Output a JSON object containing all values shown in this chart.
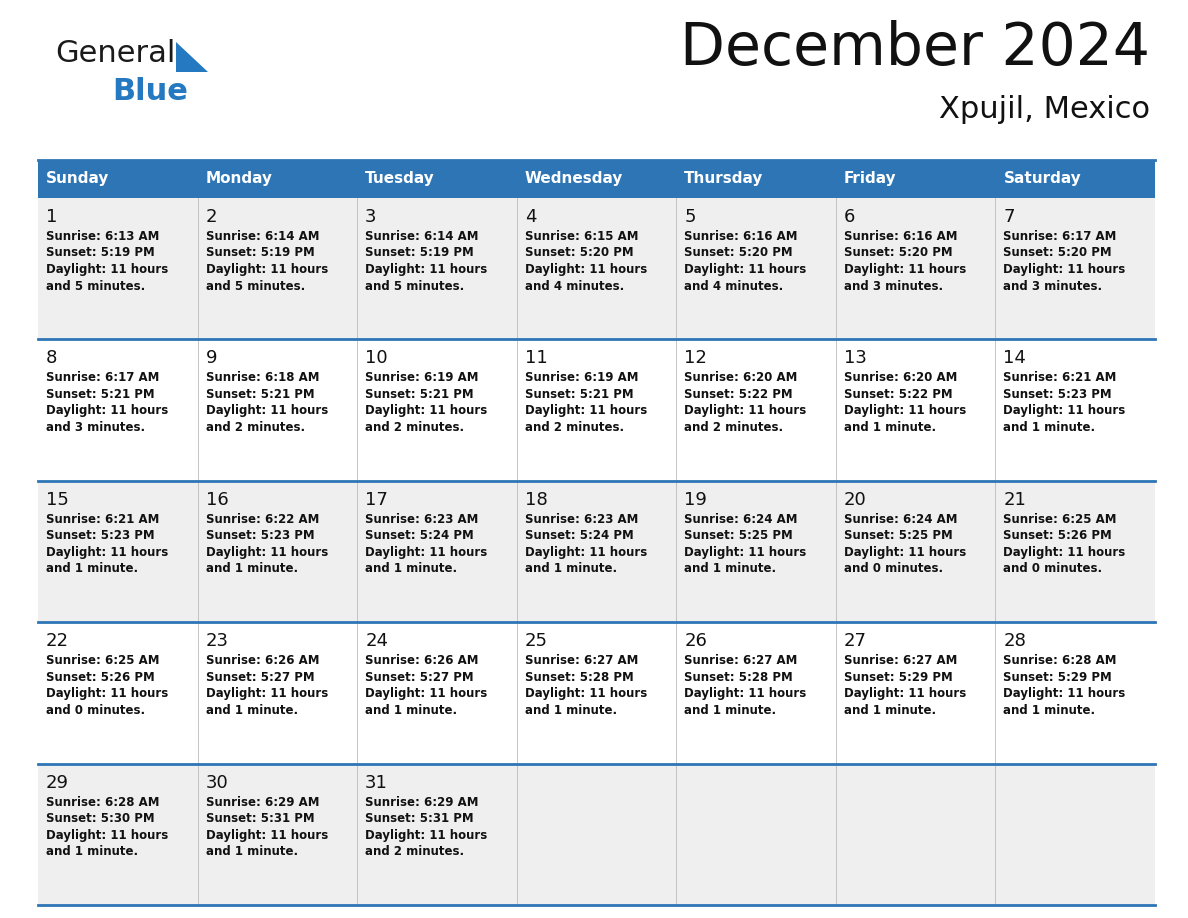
{
  "title": "December 2024",
  "subtitle": "Xpujil, Mexico",
  "header_color": "#2E75B6",
  "header_text_color": "#FFFFFF",
  "day_names": [
    "Sunday",
    "Monday",
    "Tuesday",
    "Wednesday",
    "Thursday",
    "Friday",
    "Saturday"
  ],
  "days": [
    {
      "day": 1,
      "col": 0,
      "row": 0,
      "sunrise": "6:13 AM",
      "sunset": "5:19 PM",
      "daylight": "11 hours and 5 minutes."
    },
    {
      "day": 2,
      "col": 1,
      "row": 0,
      "sunrise": "6:14 AM",
      "sunset": "5:19 PM",
      "daylight": "11 hours and 5 minutes."
    },
    {
      "day": 3,
      "col": 2,
      "row": 0,
      "sunrise": "6:14 AM",
      "sunset": "5:19 PM",
      "daylight": "11 hours and 5 minutes."
    },
    {
      "day": 4,
      "col": 3,
      "row": 0,
      "sunrise": "6:15 AM",
      "sunset": "5:20 PM",
      "daylight": "11 hours and 4 minutes."
    },
    {
      "day": 5,
      "col": 4,
      "row": 0,
      "sunrise": "6:16 AM",
      "sunset": "5:20 PM",
      "daylight": "11 hours and 4 minutes."
    },
    {
      "day": 6,
      "col": 5,
      "row": 0,
      "sunrise": "6:16 AM",
      "sunset": "5:20 PM",
      "daylight": "11 hours and 3 minutes."
    },
    {
      "day": 7,
      "col": 6,
      "row": 0,
      "sunrise": "6:17 AM",
      "sunset": "5:20 PM",
      "daylight": "11 hours and 3 minutes."
    },
    {
      "day": 8,
      "col": 0,
      "row": 1,
      "sunrise": "6:17 AM",
      "sunset": "5:21 PM",
      "daylight": "11 hours and 3 minutes."
    },
    {
      "day": 9,
      "col": 1,
      "row": 1,
      "sunrise": "6:18 AM",
      "sunset": "5:21 PM",
      "daylight": "11 hours and 2 minutes."
    },
    {
      "day": 10,
      "col": 2,
      "row": 1,
      "sunrise": "6:19 AM",
      "sunset": "5:21 PM",
      "daylight": "11 hours and 2 minutes."
    },
    {
      "day": 11,
      "col": 3,
      "row": 1,
      "sunrise": "6:19 AM",
      "sunset": "5:21 PM",
      "daylight": "11 hours and 2 minutes."
    },
    {
      "day": 12,
      "col": 4,
      "row": 1,
      "sunrise": "6:20 AM",
      "sunset": "5:22 PM",
      "daylight": "11 hours and 2 minutes."
    },
    {
      "day": 13,
      "col": 5,
      "row": 1,
      "sunrise": "6:20 AM",
      "sunset": "5:22 PM",
      "daylight": "11 hours and 1 minute."
    },
    {
      "day": 14,
      "col": 6,
      "row": 1,
      "sunrise": "6:21 AM",
      "sunset": "5:23 PM",
      "daylight": "11 hours and 1 minute."
    },
    {
      "day": 15,
      "col": 0,
      "row": 2,
      "sunrise": "6:21 AM",
      "sunset": "5:23 PM",
      "daylight": "11 hours and 1 minute."
    },
    {
      "day": 16,
      "col": 1,
      "row": 2,
      "sunrise": "6:22 AM",
      "sunset": "5:23 PM",
      "daylight": "11 hours and 1 minute."
    },
    {
      "day": 17,
      "col": 2,
      "row": 2,
      "sunrise": "6:23 AM",
      "sunset": "5:24 PM",
      "daylight": "11 hours and 1 minute."
    },
    {
      "day": 18,
      "col": 3,
      "row": 2,
      "sunrise": "6:23 AM",
      "sunset": "5:24 PM",
      "daylight": "11 hours and 1 minute."
    },
    {
      "day": 19,
      "col": 4,
      "row": 2,
      "sunrise": "6:24 AM",
      "sunset": "5:25 PM",
      "daylight": "11 hours and 1 minute."
    },
    {
      "day": 20,
      "col": 5,
      "row": 2,
      "sunrise": "6:24 AM",
      "sunset": "5:25 PM",
      "daylight": "11 hours and 0 minutes."
    },
    {
      "day": 21,
      "col": 6,
      "row": 2,
      "sunrise": "6:25 AM",
      "sunset": "5:26 PM",
      "daylight": "11 hours and 0 minutes."
    },
    {
      "day": 22,
      "col": 0,
      "row": 3,
      "sunrise": "6:25 AM",
      "sunset": "5:26 PM",
      "daylight": "11 hours and 0 minutes."
    },
    {
      "day": 23,
      "col": 1,
      "row": 3,
      "sunrise": "6:26 AM",
      "sunset": "5:27 PM",
      "daylight": "11 hours and 1 minute."
    },
    {
      "day": 24,
      "col": 2,
      "row": 3,
      "sunrise": "6:26 AM",
      "sunset": "5:27 PM",
      "daylight": "11 hours and 1 minute."
    },
    {
      "day": 25,
      "col": 3,
      "row": 3,
      "sunrise": "6:27 AM",
      "sunset": "5:28 PM",
      "daylight": "11 hours and 1 minute."
    },
    {
      "day": 26,
      "col": 4,
      "row": 3,
      "sunrise": "6:27 AM",
      "sunset": "5:28 PM",
      "daylight": "11 hours and 1 minute."
    },
    {
      "day": 27,
      "col": 5,
      "row": 3,
      "sunrise": "6:27 AM",
      "sunset": "5:29 PM",
      "daylight": "11 hours and 1 minute."
    },
    {
      "day": 28,
      "col": 6,
      "row": 3,
      "sunrise": "6:28 AM",
      "sunset": "5:29 PM",
      "daylight": "11 hours and 1 minute."
    },
    {
      "day": 29,
      "col": 0,
      "row": 4,
      "sunrise": "6:28 AM",
      "sunset": "5:30 PM",
      "daylight": "11 hours and 1 minute."
    },
    {
      "day": 30,
      "col": 1,
      "row": 4,
      "sunrise": "6:29 AM",
      "sunset": "5:31 PM",
      "daylight": "11 hours and 1 minute."
    },
    {
      "day": 31,
      "col": 2,
      "row": 4,
      "sunrise": "6:29 AM",
      "sunset": "5:31 PM",
      "daylight": "11 hours and 2 minutes."
    }
  ],
  "num_rows": 5,
  "num_cols": 7,
  "grid_line_color": "#2E75B6",
  "row_bg_colors": [
    "#EFEFEF",
    "#FFFFFF",
    "#EFEFEF",
    "#FFFFFF",
    "#EFEFEF"
  ],
  "logo_general_color": "#1A1A1A",
  "logo_blue_color": "#2479C0"
}
